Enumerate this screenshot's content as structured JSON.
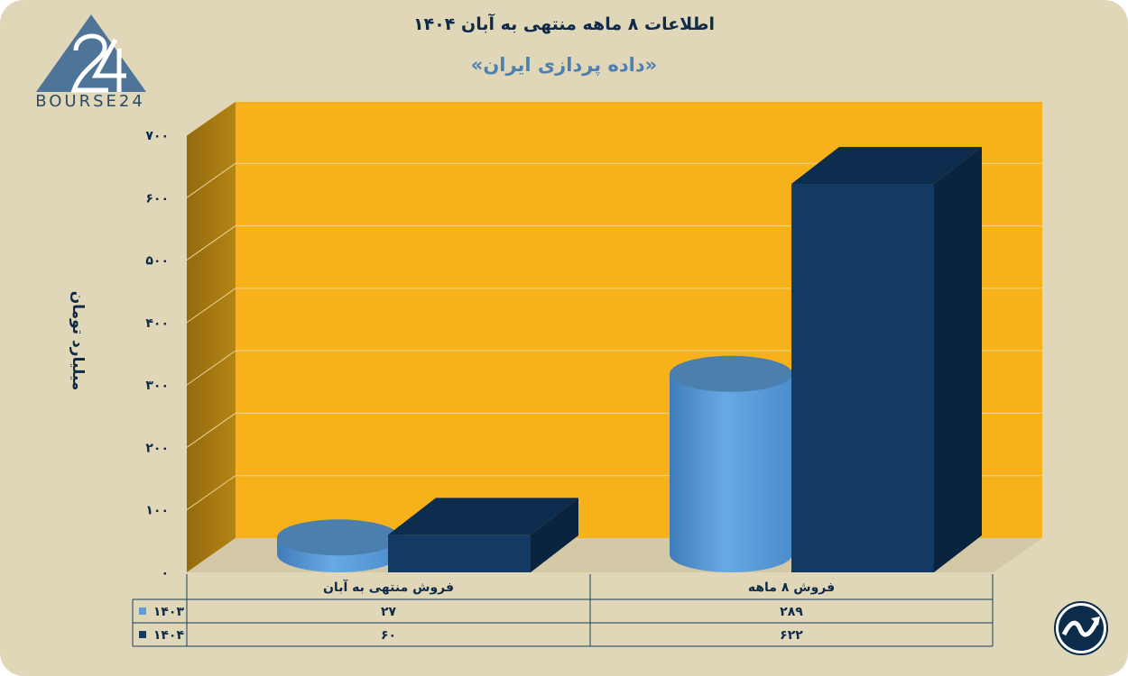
{
  "logo": {
    "text": "BOURSE24"
  },
  "chart_data": {
    "type": "bar",
    "title": "اطلاعات ۸ ماهه منتهی به آبان ۱۴۰۴",
    "subtitle": "«داده پردازی ایران»",
    "ylabel": "میلیارد تومان",
    "ylim": [
      0,
      700
    ],
    "yticks": [
      0,
      100,
      200,
      300,
      400,
      500,
      600,
      700
    ],
    "ytick_labels": [
      "۰",
      "۱۰۰",
      "۲۰۰",
      "۳۰۰",
      "۴۰۰",
      "۵۰۰",
      "۶۰۰",
      "۷۰۰"
    ],
    "categories": [
      "فروش منتهی به  آبان",
      "فروش ۸  ماهه"
    ],
    "series": [
      {
        "name": "۱۴۰۳",
        "values": [
          27,
          289
        ],
        "value_labels": [
          "۲۷",
          "۲۸۹"
        ],
        "color": "#5a9ed8",
        "shape": "cylinder"
      },
      {
        "name": "۱۴۰۴",
        "values": [
          60,
          622
        ],
        "value_labels": [
          "۶۰",
          "۶۲۲"
        ],
        "color": "#123a64",
        "shape": "box"
      }
    ],
    "grid": true,
    "legend": "data-table-left",
    "colors": {
      "back_wall": "#f7b21b",
      "side_wall": "#a87a12",
      "background": "#e0d7b9"
    }
  }
}
